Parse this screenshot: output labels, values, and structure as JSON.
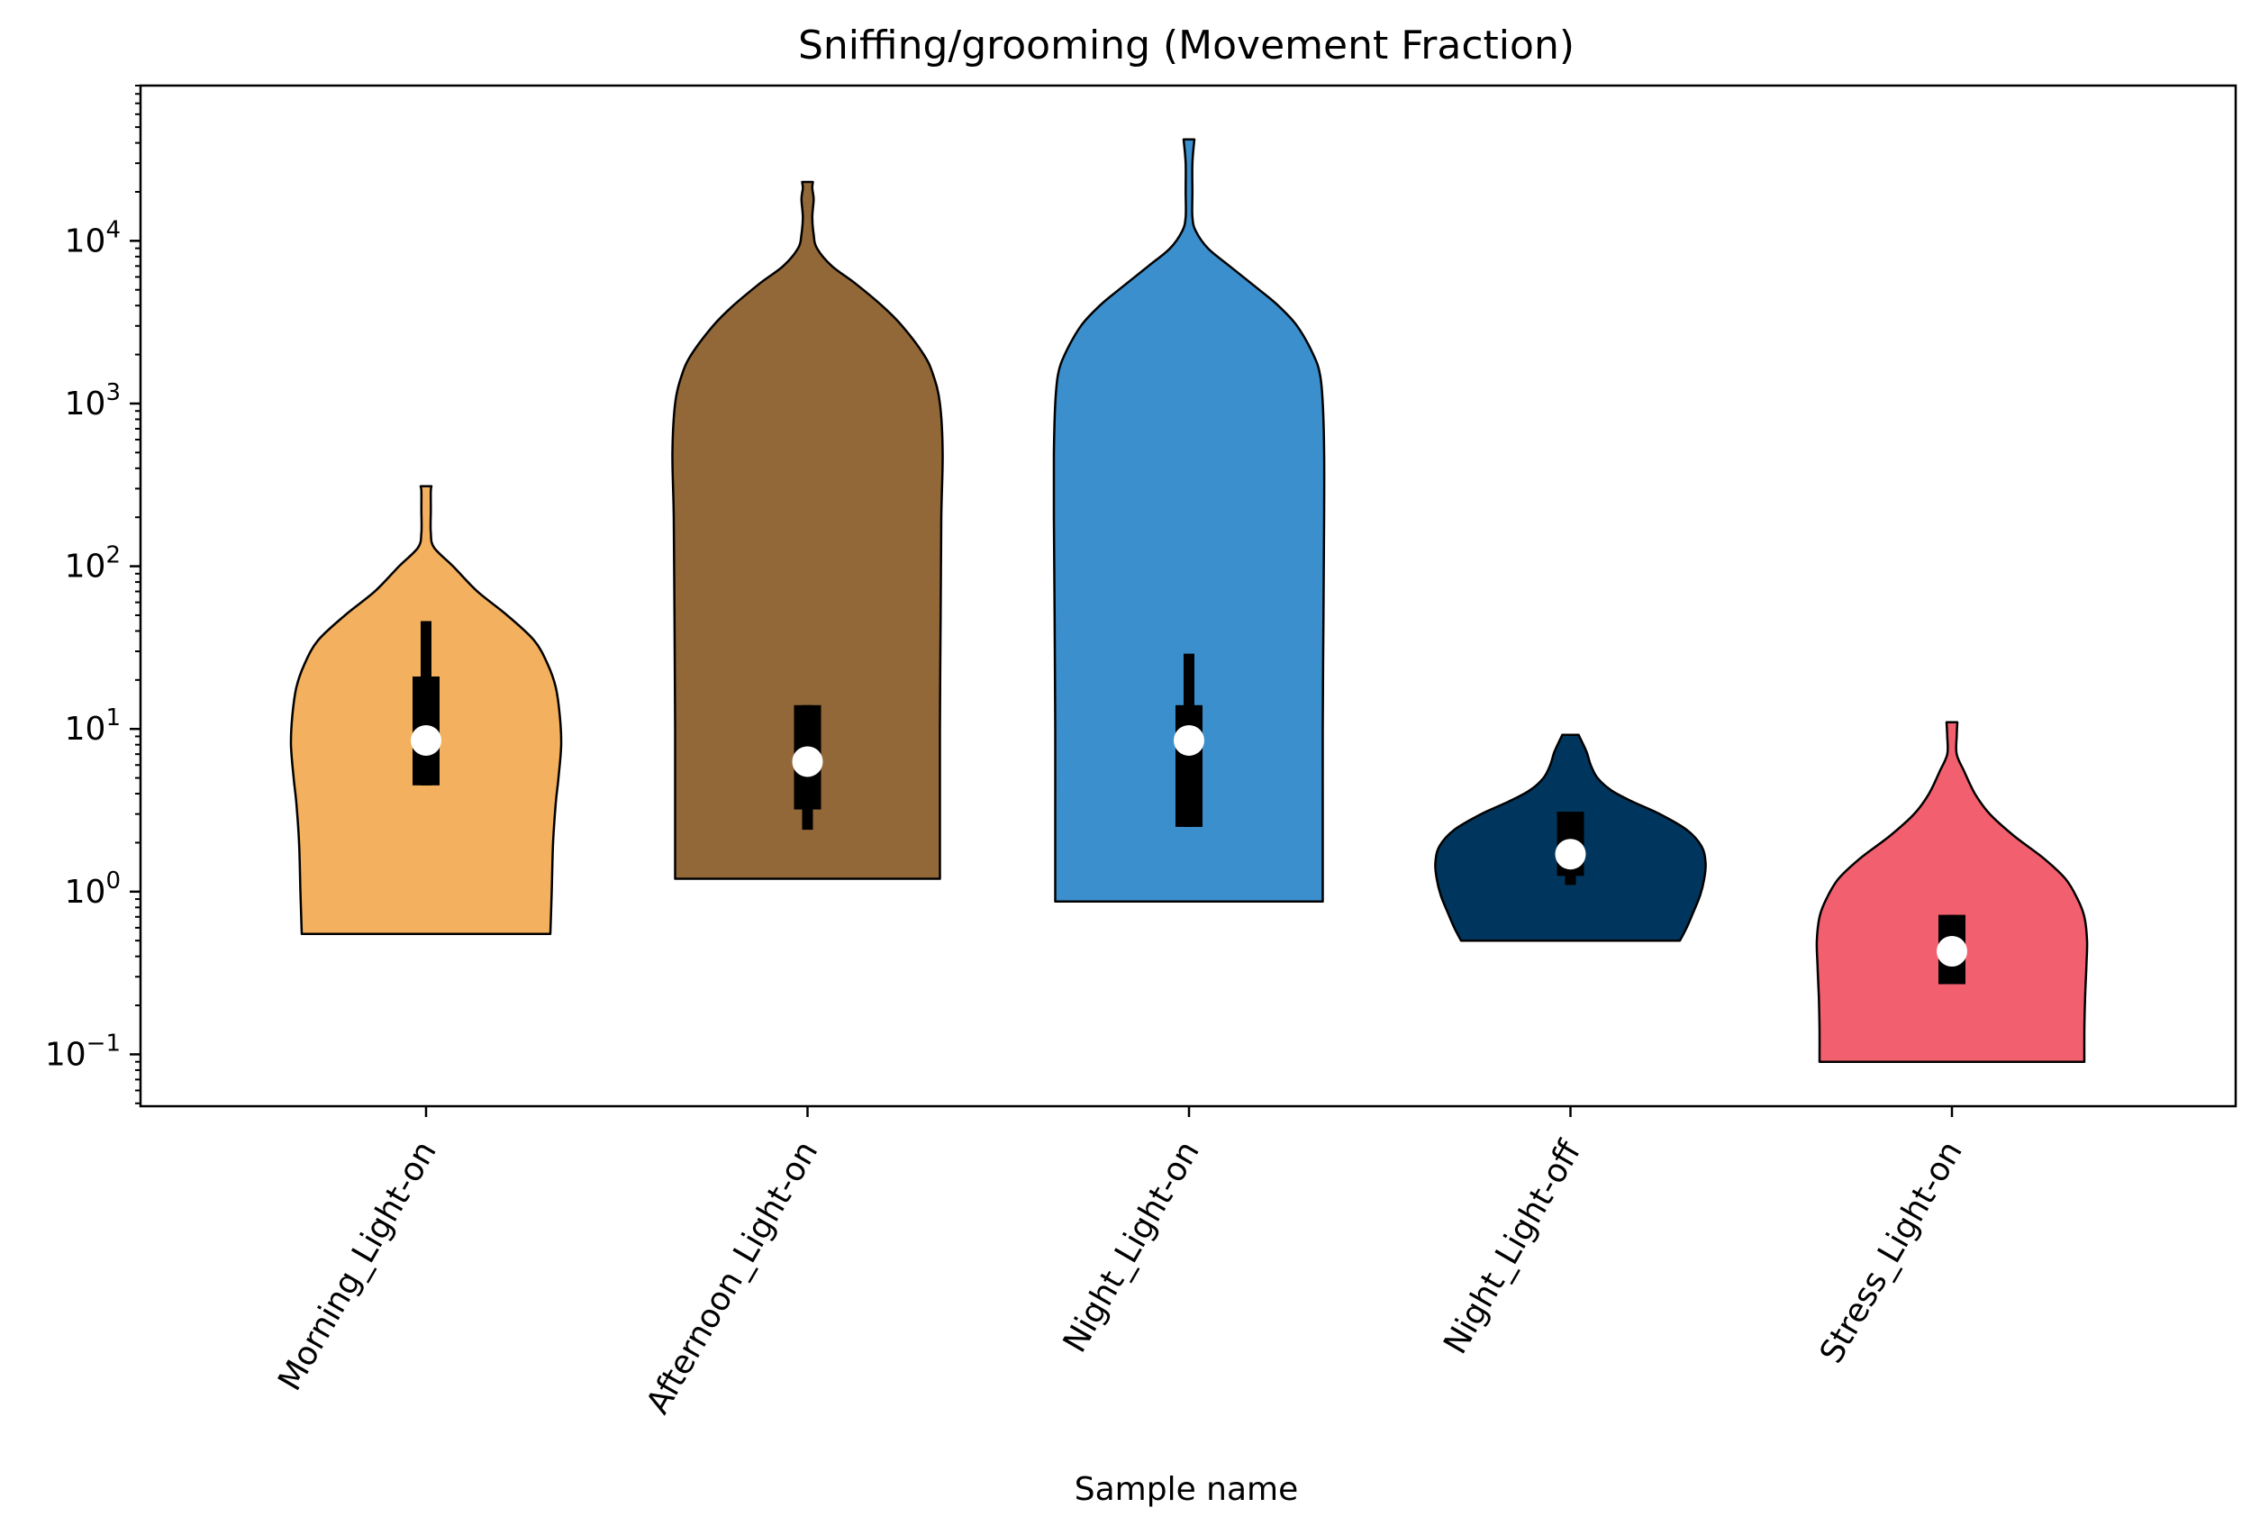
{
  "chart_data": {
    "type": "violin",
    "title": "Sniffing/grooming (Movement Fraction)",
    "xlabel": "Sample name",
    "ylabel": "",
    "yscale": "log",
    "ylim": [
      0.048,
      90000
    ],
    "yticks": [
      {
        "value": 0.1,
        "base": "10",
        "exp": "−1"
      },
      {
        "value": 1,
        "base": "10",
        "exp": "0"
      },
      {
        "value": 10,
        "base": "10",
        "exp": "1"
      },
      {
        "value": 100,
        "base": "10",
        "exp": "2"
      },
      {
        "value": 1000,
        "base": "10",
        "exp": "3"
      },
      {
        "value": 10000,
        "base": "10",
        "exp": "4"
      }
    ],
    "grid": false,
    "categories": [
      "Morning_Light-on",
      "Afternoon_Light-on",
      "Night_Light-on",
      "Night_Light-off",
      "Stress_Light-on"
    ],
    "series": [
      {
        "color": "#f3b05e",
        "min": 0.55,
        "max": 310,
        "q1": 4.5,
        "median": 8.5,
        "q3": 21,
        "whisker_low": 4.5,
        "whisker_high": 46,
        "profile": [
          [
            0.55,
            0.92
          ],
          [
            1.0,
            0.93
          ],
          [
            2.0,
            0.94
          ],
          [
            3.5,
            0.96
          ],
          [
            5,
            0.98
          ],
          [
            8,
            1.0
          ],
          [
            12,
            0.99
          ],
          [
            18,
            0.96
          ],
          [
            25,
            0.9
          ],
          [
            35,
            0.8
          ],
          [
            50,
            0.6
          ],
          [
            70,
            0.38
          ],
          [
            100,
            0.2
          ],
          [
            130,
            0.06
          ],
          [
            160,
            0.035
          ],
          [
            220,
            0.035
          ],
          [
            290,
            0.035
          ],
          [
            310,
            0.04
          ]
        ]
      },
      {
        "color": "#926838",
        "min": 1.2,
        "max": 23000,
        "q1": 3.2,
        "median": 6.3,
        "q3": 14,
        "whisker_low": 2.4,
        "whisker_high": 14,
        "profile": [
          [
            1.2,
            0.98
          ],
          [
            3,
            0.98
          ],
          [
            10,
            0.98
          ],
          [
            50,
            0.985
          ],
          [
            200,
            0.99
          ],
          [
            500,
            1.0
          ],
          [
            1000,
            0.98
          ],
          [
            1500,
            0.93
          ],
          [
            2000,
            0.86
          ],
          [
            3000,
            0.7
          ],
          [
            4000,
            0.55
          ],
          [
            5500,
            0.35
          ],
          [
            7000,
            0.18
          ],
          [
            9000,
            0.07
          ],
          [
            11000,
            0.045
          ],
          [
            14000,
            0.035
          ],
          [
            18000,
            0.045
          ],
          [
            21000,
            0.035
          ],
          [
            23000,
            0.04
          ]
        ]
      },
      {
        "color": "#3b8fcc",
        "min": 0.87,
        "max": 42000,
        "q1": 2.5,
        "median": 8.5,
        "q3": 14,
        "whisker_low": 2.5,
        "whisker_high": 29,
        "profile": [
          [
            0.87,
            0.99
          ],
          [
            3,
            0.99
          ],
          [
            10,
            0.99
          ],
          [
            50,
            0.995
          ],
          [
            200,
            1.0
          ],
          [
            500,
            1.0
          ],
          [
            1000,
            0.99
          ],
          [
            1500,
            0.97
          ],
          [
            2000,
            0.92
          ],
          [
            3000,
            0.8
          ],
          [
            4000,
            0.66
          ],
          [
            5000,
            0.52
          ],
          [
            7000,
            0.3
          ],
          [
            9000,
            0.14
          ],
          [
            11500,
            0.05
          ],
          [
            14000,
            0.025
          ],
          [
            20000,
            0.025
          ],
          [
            30000,
            0.025
          ],
          [
            42000,
            0.04
          ]
        ]
      },
      {
        "color": "#00365e",
        "min": 0.5,
        "max": 9.2,
        "q1": 1.25,
        "median": 1.7,
        "q3": 3.1,
        "whisker_low": 1.1,
        "whisker_high": 3.1,
        "profile": [
          [
            0.5,
            0.81
          ],
          [
            0.6,
            0.86
          ],
          [
            0.75,
            0.91
          ],
          [
            0.95,
            0.96
          ],
          [
            1.2,
            0.99
          ],
          [
            1.5,
            1.0
          ],
          [
            1.9,
            0.97
          ],
          [
            2.4,
            0.86
          ],
          [
            3.0,
            0.66
          ],
          [
            3.6,
            0.45
          ],
          [
            4.2,
            0.3
          ],
          [
            5.0,
            0.2
          ],
          [
            6.0,
            0.15
          ],
          [
            7.2,
            0.12
          ],
          [
            8.5,
            0.08
          ],
          [
            9.2,
            0.06
          ]
        ]
      },
      {
        "color": "#f25f6e",
        "min": 0.09,
        "max": 11,
        "q1": 0.27,
        "median": 0.43,
        "q3": 0.72,
        "whisker_low": 0.27,
        "whisker_high": 0.72,
        "profile": [
          [
            0.09,
            0.98
          ],
          [
            0.14,
            0.98
          ],
          [
            0.22,
            0.985
          ],
          [
            0.35,
            0.995
          ],
          [
            0.5,
            1.0
          ],
          [
            0.7,
            0.98
          ],
          [
            0.9,
            0.93
          ],
          [
            1.2,
            0.84
          ],
          [
            1.6,
            0.68
          ],
          [
            2.2,
            0.46
          ],
          [
            3.0,
            0.28
          ],
          [
            4.0,
            0.17
          ],
          [
            5.5,
            0.09
          ],
          [
            7.0,
            0.035
          ],
          [
            9.0,
            0.035
          ],
          [
            11,
            0.04
          ]
        ]
      }
    ]
  }
}
